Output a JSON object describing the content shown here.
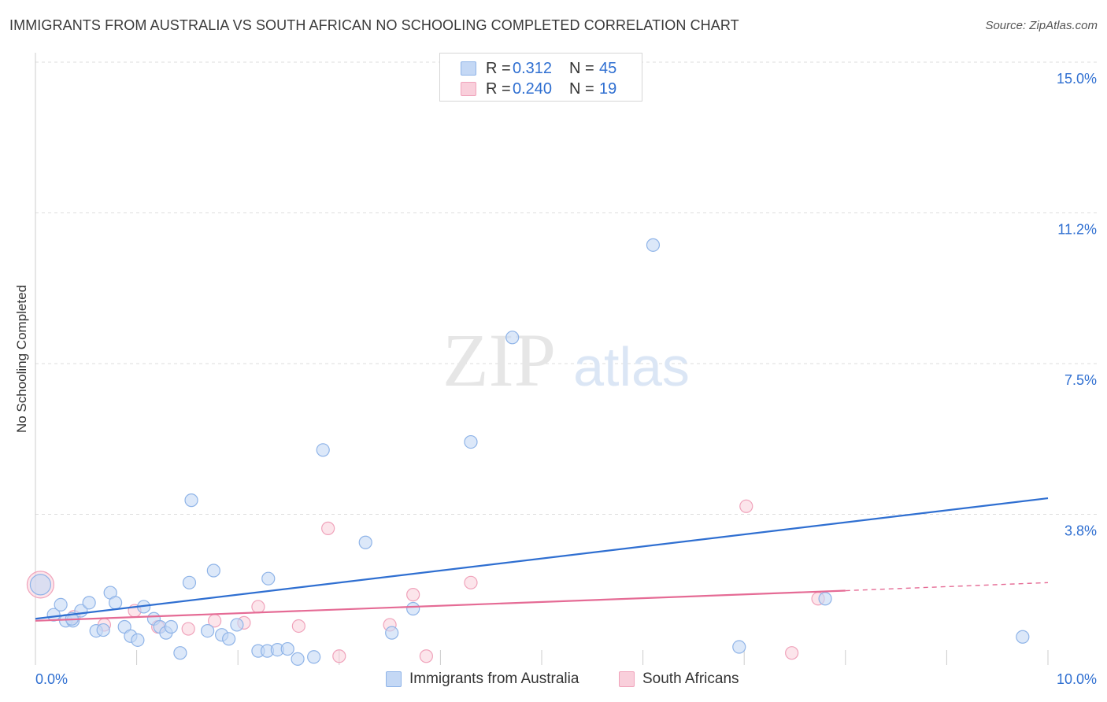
{
  "header": {
    "title": "IMMIGRANTS FROM AUSTRALIA VS SOUTH AFRICAN NO SCHOOLING COMPLETED CORRELATION CHART",
    "source": "Source: ZipAtlas.com"
  },
  "watermark": {
    "zip": "ZIP",
    "atlas": "atlas"
  },
  "legend": {
    "rows": [
      {
        "r_label": "R =",
        "r_value": "0.312",
        "n_label": "N =",
        "n_value": "45"
      },
      {
        "r_label": "R =",
        "r_value": "0.240",
        "n_label": "N =",
        "n_value": "19"
      }
    ]
  },
  "bottom_legend": {
    "series1": "Immigrants from Australia",
    "series2": "South Africans"
  },
  "colors": {
    "blue_fill": "#c4d8f5",
    "blue_stroke": "#8fb4e8",
    "blue_line": "#2f6fd1",
    "pink_fill": "#f9cfdb",
    "pink_stroke": "#f0a3bb",
    "pink_line": "#e56b95",
    "tick_blue": "#2f6fd1",
    "grid": "#dddddd"
  },
  "chart_data": {
    "type": "scatter",
    "title": "IMMIGRANTS FROM AUSTRALIA VS SOUTH AFRICAN NO SCHOOLING COMPLETED CORRELATION CHART",
    "xlabel": "",
    "ylabel": "No Schooling Completed",
    "xlim": [
      0,
      10
    ],
    "ylim": [
      0,
      15
    ],
    "x_tick_labels": [
      "0.0%",
      "10.0%"
    ],
    "y_ticks": [
      3.75,
      7.5,
      11.25,
      15.0
    ],
    "y_tick_labels": [
      "3.8%",
      "7.5%",
      "11.2%",
      "15.0%"
    ],
    "series": [
      {
        "name": "Immigrants from Australia",
        "R": 0.312,
        "N": 45,
        "points": [
          {
            "x": 0.05,
            "y": 2.0,
            "big": true
          },
          {
            "x": 0.18,
            "y": 1.25
          },
          {
            "x": 0.25,
            "y": 1.5
          },
          {
            "x": 0.3,
            "y": 1.1
          },
          {
            "x": 0.37,
            "y": 1.1
          },
          {
            "x": 0.45,
            "y": 1.35
          },
          {
            "x": 0.53,
            "y": 1.55
          },
          {
            "x": 0.6,
            "y": 0.85
          },
          {
            "x": 0.67,
            "y": 0.87
          },
          {
            "x": 0.74,
            "y": 1.8
          },
          {
            "x": 0.79,
            "y": 1.55
          },
          {
            "x": 0.88,
            "y": 0.95
          },
          {
            "x": 0.94,
            "y": 0.72
          },
          {
            "x": 1.01,
            "y": 0.62
          },
          {
            "x": 1.07,
            "y": 1.45
          },
          {
            "x": 1.17,
            "y": 1.15
          },
          {
            "x": 1.23,
            "y": 0.95
          },
          {
            "x": 1.29,
            "y": 0.8
          },
          {
            "x": 1.34,
            "y": 0.95
          },
          {
            "x": 1.43,
            "y": 0.3
          },
          {
            "x": 1.52,
            "y": 2.05
          },
          {
            "x": 1.54,
            "y": 4.1
          },
          {
            "x": 1.7,
            "y": 0.85
          },
          {
            "x": 1.76,
            "y": 2.35
          },
          {
            "x": 1.84,
            "y": 0.75
          },
          {
            "x": 1.91,
            "y": 0.65
          },
          {
            "x": 1.99,
            "y": 1.0
          },
          {
            "x": 2.2,
            "y": 0.35
          },
          {
            "x": 2.29,
            "y": 0.35
          },
          {
            "x": 2.3,
            "y": 2.15
          },
          {
            "x": 2.39,
            "y": 0.38
          },
          {
            "x": 2.49,
            "y": 0.4
          },
          {
            "x": 2.59,
            "y": 0.15
          },
          {
            "x": 2.75,
            "y": 0.2
          },
          {
            "x": 2.84,
            "y": 5.35
          },
          {
            "x": 3.26,
            "y": 3.05
          },
          {
            "x": 3.52,
            "y": 0.8
          },
          {
            "x": 3.73,
            "y": 1.4
          },
          {
            "x": 4.3,
            "y": 5.55
          },
          {
            "x": 4.71,
            "y": 8.15
          },
          {
            "x": 6.1,
            "y": 10.45
          },
          {
            "x": 6.95,
            "y": 0.45
          },
          {
            "x": 7.8,
            "y": 1.65
          },
          {
            "x": 9.75,
            "y": 0.7
          },
          {
            "x": 0.36,
            "y": 1.15
          }
        ],
        "trend": {
          "x0": 0.0,
          "y0": 1.15,
          "x1": 10.0,
          "y1": 4.15
        }
      },
      {
        "name": "South Africans",
        "R": 0.24,
        "N": 19,
        "points": [
          {
            "x": 0.05,
            "y": 2.0,
            "big": true
          },
          {
            "x": 0.38,
            "y": 1.2
          },
          {
            "x": 0.68,
            "y": 1.0
          },
          {
            "x": 0.98,
            "y": 1.35
          },
          {
            "x": 1.21,
            "y": 0.95
          },
          {
            "x": 1.51,
            "y": 0.9
          },
          {
            "x": 1.77,
            "y": 1.1
          },
          {
            "x": 2.06,
            "y": 1.05
          },
          {
            "x": 2.2,
            "y": 1.45
          },
          {
            "x": 2.6,
            "y": 0.97
          },
          {
            "x": 2.89,
            "y": 3.4
          },
          {
            "x": 3.0,
            "y": 0.22
          },
          {
            "x": 3.5,
            "y": 1.0
          },
          {
            "x": 3.73,
            "y": 1.75
          },
          {
            "x": 3.86,
            "y": 0.22
          },
          {
            "x": 4.3,
            "y": 2.05
          },
          {
            "x": 7.02,
            "y": 3.95
          },
          {
            "x": 7.47,
            "y": 0.3
          },
          {
            "x": 7.73,
            "y": 1.65
          }
        ],
        "trend": {
          "x0": 0.0,
          "y0": 1.1,
          "x1": 8.0,
          "y1": 1.85
        },
        "trend_dashed": {
          "x0": 8.0,
          "y0": 1.85,
          "x1": 10.0,
          "y1": 2.05
        }
      }
    ]
  }
}
